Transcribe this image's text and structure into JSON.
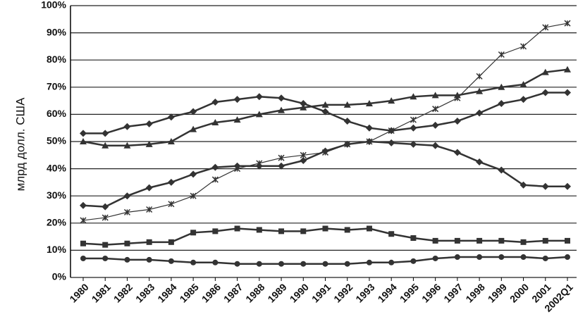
{
  "chart_data": {
    "type": "line",
    "y_label": "млрд долл. США",
    "categories": [
      "1980",
      "1981",
      "1982",
      "1983",
      "1984",
      "1985",
      "1986",
      "1987",
      "1988",
      "1989",
      "1990",
      "1991",
      "1992",
      "1993",
      "1994",
      "1995",
      "1996",
      "1997",
      "1998",
      "1999",
      "2000",
      "2001",
      "2002Q1"
    ],
    "series": [
      {
        "color": "#333333",
        "marker": "x",
        "values": [
          21,
          22,
          24,
          25,
          27,
          30,
          36,
          40,
          42,
          44,
          45,
          46,
          49,
          50,
          54,
          58,
          62,
          66,
          74,
          82,
          85,
          92,
          93.5
        ]
      },
      {
        "color": "#333333",
        "marker": "triangle",
        "values": [
          50,
          48.5,
          48.5,
          49,
          50,
          54.5,
          57,
          58,
          60,
          61.5,
          62.5,
          63.5,
          63.5,
          64,
          65,
          66.5,
          67,
          67,
          68.5,
          70,
          71,
          75.5,
          76.5
        ]
      },
      {
        "color": "#333333",
        "marker": "diamond",
        "values": [
          53,
          53,
          55.5,
          56.5,
          59,
          61,
          64.5,
          65.5,
          66.5,
          66,
          64,
          61,
          57.5,
          55,
          54,
          55,
          56,
          57.5,
          60.5,
          64,
          65.5,
          68,
          68
        ]
      },
      {
        "color": "#333333",
        "marker": "diamond",
        "values": [
          26.5,
          26,
          30,
          33,
          35,
          38,
          40.5,
          41,
          41,
          41,
          43,
          46.5,
          49,
          50,
          49.5,
          49,
          48.5,
          46,
          42.5,
          39.5,
          34,
          33.5,
          33.5
        ]
      },
      {
        "color": "#333333",
        "marker": "square",
        "values": [
          12.5,
          12,
          12.5,
          13,
          13,
          16.5,
          17,
          18,
          17.5,
          17,
          17,
          18,
          17.5,
          18,
          16,
          14.5,
          13.5,
          13.5,
          13.5,
          13.5,
          13,
          13.5,
          13.5
        ]
      },
      {
        "color": "#333333",
        "marker": "circle",
        "values": [
          7,
          7,
          6.5,
          6.5,
          6,
          5.5,
          5.5,
          5,
          5,
          5,
          5,
          5,
          5,
          5.5,
          5.5,
          6,
          7,
          7.5,
          7.5,
          7.5,
          7.5,
          7,
          7.5
        ]
      }
    ],
    "ylim": [
      0,
      100
    ],
    "yticks": [
      {
        "value": 0,
        "label": "0%"
      },
      {
        "value": 10,
        "label": "10%"
      },
      {
        "value": 20,
        "label": "20%"
      },
      {
        "value": 30,
        "label": "30%"
      },
      {
        "value": 40,
        "label": "40%"
      },
      {
        "value": 50,
        "label": "50%"
      },
      {
        "value": 60,
        "label": "60%"
      },
      {
        "value": 70,
        "label": "70%"
      },
      {
        "value": 80,
        "label": "80%"
      },
      {
        "value": 90,
        "label": "90%"
      },
      {
        "value": 100,
        "label": "100%"
      }
    ],
    "grid": true
  }
}
